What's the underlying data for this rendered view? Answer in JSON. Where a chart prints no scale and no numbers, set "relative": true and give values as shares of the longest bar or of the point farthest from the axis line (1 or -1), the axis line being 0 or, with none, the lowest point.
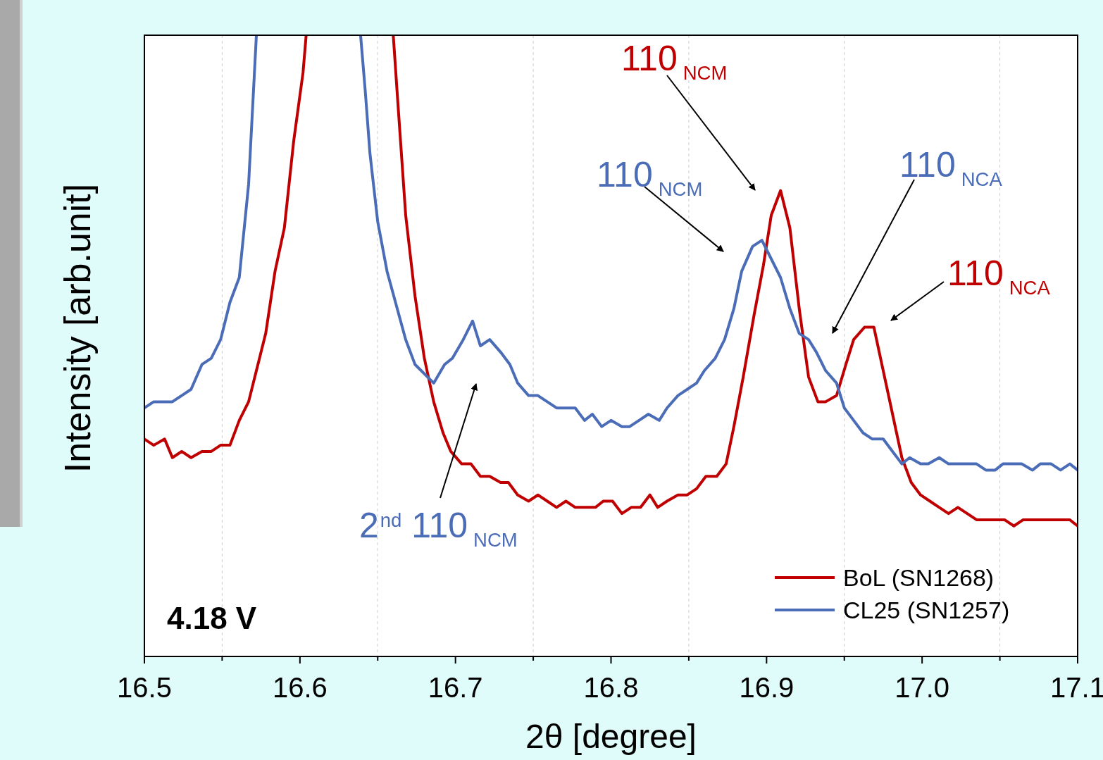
{
  "chart_data": {
    "type": "line",
    "relative": true,
    "xlabel": "2θ [degree]",
    "ylabel": "Intensity [arb.unit]",
    "xlim": [
      16.5,
      17.1
    ],
    "xticks": [
      16.5,
      {
        "value": 16.55,
        "label": null
      },
      16.6,
      {
        "value": 16.65,
        "label": null
      },
      16.7,
      {
        "value": 16.75,
        "label": null
      },
      16.8,
      {
        "value": 16.85,
        "label": null
      },
      16.9,
      {
        "value": 16.95,
        "label": null
      },
      {
        "value": 17.0,
        "label": "17.0"
      },
      {
        "value": 17.05,
        "label": null
      },
      17.1
    ],
    "grid": "x",
    "legend": "bottom right",
    "line_style": "solid",
    "marker": "none",
    "series": [
      {
        "name": "BoL (SN1268)",
        "color": "#c00000",
        "x": [
          16.5,
          16.506,
          16.513,
          16.518,
          16.524,
          16.53,
          16.537,
          16.543,
          16.549,
          16.555,
          16.561,
          16.567,
          16.572,
          16.578,
          16.584,
          16.59,
          16.596,
          16.602,
          16.604,
          16.63,
          16.66,
          16.663,
          16.668,
          16.674,
          16.68,
          16.686,
          16.692,
          16.697,
          16.704,
          16.71,
          16.716,
          16.722,
          16.729,
          16.734,
          16.74,
          16.747,
          16.753,
          16.759,
          16.765,
          16.771,
          16.777,
          16.784,
          16.79,
          16.795,
          16.801,
          16.807,
          16.813,
          16.819,
          16.825,
          16.83,
          16.836,
          16.843,
          16.849,
          16.855,
          16.861,
          16.868,
          16.874,
          16.879,
          16.885,
          16.892,
          16.898,
          16.903,
          16.909,
          16.915,
          16.921,
          16.927,
          16.933,
          16.938,
          16.945,
          16.951,
          16.956,
          16.963,
          16.969,
          16.975,
          16.981,
          16.987,
          16.993,
          16.999,
          17.005,
          17.011,
          17.017,
          17.023,
          17.029,
          17.035,
          17.041,
          17.047,
          17.053,
          17.059,
          17.065,
          17.076,
          17.087,
          17.095,
          17.1
        ],
        "values": [
          0.35,
          0.34,
          0.35,
          0.32,
          0.33,
          0.32,
          0.33,
          0.33,
          0.34,
          0.34,
          0.38,
          0.41,
          0.46,
          0.52,
          0.62,
          0.69,
          0.83,
          0.94,
          1.0,
          null,
          1.0,
          0.89,
          0.71,
          0.58,
          0.48,
          0.41,
          0.36,
          0.33,
          0.31,
          0.31,
          0.29,
          0.29,
          0.28,
          0.28,
          0.26,
          0.25,
          0.26,
          0.25,
          0.24,
          0.25,
          0.24,
          0.24,
          0.24,
          0.25,
          0.25,
          0.23,
          0.24,
          0.24,
          0.26,
          0.24,
          0.25,
          0.26,
          0.26,
          0.27,
          0.29,
          0.29,
          0.31,
          0.37,
          0.45,
          0.55,
          0.63,
          0.71,
          0.75,
          0.69,
          0.56,
          0.45,
          0.41,
          0.41,
          0.42,
          0.47,
          0.51,
          0.53,
          0.53,
          0.46,
          0.39,
          0.32,
          0.28,
          0.26,
          0.25,
          0.24,
          0.23,
          0.24,
          0.23,
          0.22,
          0.22,
          0.22,
          0.22,
          0.21,
          0.22,
          0.22,
          0.22,
          0.22,
          0.21
        ]
      },
      {
        "name": "CL25 (SN1257)",
        "color": "#4b6cb7",
        "x": [
          16.5,
          16.506,
          16.513,
          16.518,
          16.524,
          16.53,
          16.537,
          16.543,
          16.549,
          16.555,
          16.561,
          16.567,
          16.572,
          16.6,
          16.639,
          16.642,
          16.645,
          16.65,
          16.656,
          16.668,
          16.674,
          16.686,
          16.693,
          16.698,
          16.705,
          16.711,
          16.716,
          16.722,
          16.729,
          16.735,
          16.74,
          16.747,
          16.753,
          16.759,
          16.765,
          16.771,
          16.777,
          16.783,
          16.788,
          16.794,
          16.8,
          16.807,
          16.812,
          16.818,
          16.824,
          16.831,
          16.836,
          16.843,
          16.849,
          16.855,
          16.86,
          16.867,
          16.873,
          16.879,
          16.884,
          16.891,
          16.897,
          16.903,
          16.909,
          16.915,
          16.921,
          16.927,
          16.932,
          16.938,
          16.945,
          16.95,
          16.956,
          16.962,
          16.968,
          16.975,
          16.981,
          16.987,
          16.992,
          16.999,
          17.004,
          17.011,
          17.017,
          17.023,
          17.029,
          17.035,
          17.041,
          17.047,
          17.052,
          17.058,
          17.064,
          17.071,
          17.076,
          17.083,
          17.089,
          17.095,
          17.1
        ],
        "values": [
          0.4,
          0.41,
          0.41,
          0.41,
          0.42,
          0.43,
          0.47,
          0.48,
          0.51,
          0.57,
          0.61,
          0.76,
          1.0,
          null,
          1.0,
          0.91,
          0.81,
          0.7,
          0.62,
          0.51,
          0.47,
          0.44,
          0.47,
          0.48,
          0.51,
          0.54,
          0.5,
          0.51,
          0.49,
          0.47,
          0.44,
          0.42,
          0.42,
          0.41,
          0.4,
          0.4,
          0.4,
          0.38,
          0.39,
          0.37,
          0.38,
          0.37,
          0.37,
          0.38,
          0.39,
          0.38,
          0.4,
          0.42,
          0.43,
          0.44,
          0.46,
          0.48,
          0.51,
          0.56,
          0.62,
          0.66,
          0.67,
          0.64,
          0.61,
          0.56,
          0.52,
          0.51,
          0.49,
          0.46,
          0.44,
          0.4,
          0.38,
          0.36,
          0.35,
          0.35,
          0.33,
          0.31,
          0.32,
          0.31,
          0.31,
          0.32,
          0.31,
          0.31,
          0.31,
          0.31,
          0.3,
          0.3,
          0.31,
          0.31,
          0.31,
          0.3,
          0.31,
          0.31,
          0.3,
          0.31,
          0.3
        ]
      }
    ],
    "annotations": [
      "110$_{NCM}$",
      "110$_{NCM}$",
      "110$_{NCA}$",
      "110$_{NCA}$",
      "2$^{nd}$ 110$_{NCM}$",
      "4.18 V"
    ]
  }
}
